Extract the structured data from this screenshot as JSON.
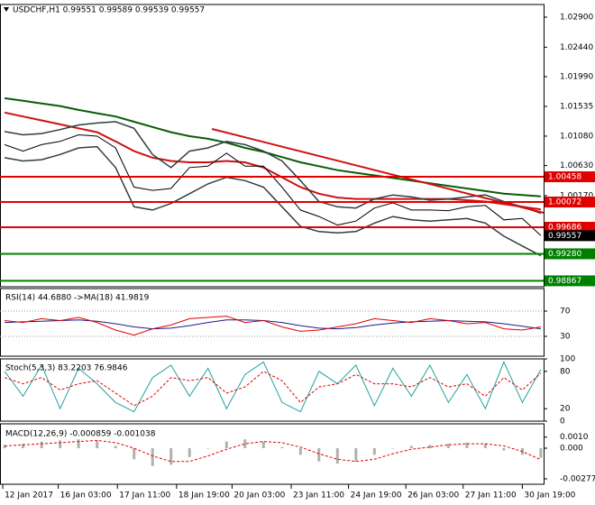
{
  "chart_data": [
    {
      "type": "line",
      "title": "USDCHF,H1  0.99551 0.99589 0.99539 0.99557",
      "ylim": [
        0.98776,
        1.03093
      ],
      "yticks": [
        {
          "value": 1.029,
          "label": "1.02900"
        },
        {
          "value": 1.0244,
          "label": "1.02440"
        },
        {
          "value": 1.0199,
          "label": "1.01990"
        },
        1.01535,
        {
          "value": 1.0108,
          "label": "1.01080"
        },
        {
          "value": 1.0063,
          "label": "1.00630"
        },
        {
          "value": 1.0017,
          "label": "1.00170"
        }
      ],
      "series": [
        {
          "color": "#0a5c0a",
          "width": 2,
          "values": [
            1.0166,
            1.0162,
            1.0158,
            1.0154,
            1.0148,
            1.0143,
            1.0138,
            1.013,
            1.0122,
            1.0114,
            1.0108,
            1.0104,
            1.0098,
            1.009,
            1.0084,
            1.0076,
            1.0068,
            1.0062,
            1.0056,
            1.0052,
            1.0048,
            1.0044,
            1.004,
            1.0036,
            1.0032,
            1.0028,
            1.0024,
            1.002,
            1.0018,
            1.0016
          ]
        },
        {
          "color": "#d01010",
          "width": 2,
          "values": [
            1.0144,
            1.0138,
            1.0132,
            1.0126,
            1.012,
            1.0114,
            1.01,
            1.0085,
            1.0075,
            1.007,
            1.0068,
            1.0068,
            1.007,
            1.0068,
            1.006,
            1.0045,
            1.003,
            1.002,
            1.0014,
            1.0012,
            1.0012,
            1.0012,
            1.0012,
            1.0012,
            1.0012,
            1.001,
            1.0008,
            1.0004,
            1.0,
            0.9996
          ]
        },
        {
          "color": "#2f3f3f",
          "width": 1.5,
          "values": [
            1.0115,
            1.011,
            1.0112,
            1.0118,
            1.0125,
            1.0128,
            1.013,
            1.012,
            1.008,
            1.006,
            1.0085,
            1.009,
            1.01,
            1.0095,
            1.0085,
            1.007,
            1.004,
            1.0008,
            1.0,
            0.9998,
            1.0012,
            1.0018,
            1.0015,
            1.001,
            1.0012,
            1.0015,
            1.0018,
            1.0008,
            1.0,
            0.999
          ]
        },
        {
          "color": "#2f3f3f",
          "width": 1.5,
          "values": [
            1.0075,
            1.007,
            1.0072,
            1.008,
            1.009,
            1.0092,
            1.006,
            1.0,
            0.9995,
            1.0005,
            1.002,
            1.0035,
            1.0045,
            1.004,
            1.003,
            1.0,
            0.997,
            0.9962,
            0.996,
            0.9962,
            0.9975,
            0.9985,
            0.998,
            0.9978,
            0.998,
            0.9982,
            0.9975,
            0.9955,
            0.994,
            0.9925
          ]
        },
        {
          "color": "#000000",
          "width": 1,
          "values": [
            1.0095,
            1.0085,
            1.0095,
            1.01,
            1.011,
            1.0108,
            1.009,
            1.003,
            1.0025,
            1.0028,
            1.006,
            1.0062,
            1.0082,
            1.0062,
            1.0062,
            1.003,
            0.9995,
            0.9985,
            0.9972,
            0.9978,
            0.9998,
            1.0006,
            0.9995,
            0.9995,
            0.9994,
            1.0,
            1.0002,
            0.998,
            0.9982,
            0.9956
          ]
        }
      ],
      "trend_line": {
        "color": "#d01010",
        "x": [
          11.21,
          29.15
        ],
        "y": [
          1.0119,
          0.99907
        ]
      },
      "levels": [
        {
          "value": 1.00458,
          "color": "#e00000"
        },
        {
          "value": 1.00072,
          "color": "#e00000"
        },
        {
          "value": 0.99686,
          "color": "#e00000"
        },
        {
          "value": 0.9928,
          "label": "0.99280",
          "color": "#008000"
        },
        {
          "value": 0.98867,
          "color": "#008000"
        }
      ],
      "current_price": 0.99557
    },
    {
      "type": "line",
      "title": "RSI(14) 44.6880 ->MA(18) 41.9819",
      "ylim": [
        -1.4,
        105.7
      ],
      "yticks": [
        70,
        30
      ],
      "series": [
        {
          "color": "#1a1a8c",
          "width": 1,
          "values": [
            52,
            53,
            54,
            55,
            56,
            54,
            50,
            45,
            42,
            43,
            47,
            52,
            56,
            56,
            55,
            52,
            47,
            43,
            42,
            44,
            48,
            51,
            53,
            54,
            55,
            54,
            53,
            50,
            46,
            42
          ]
        },
        {
          "color": "#e00000",
          "width": 1,
          "values": [
            55,
            52,
            58,
            55,
            60,
            52,
            40,
            32,
            42,
            48,
            58,
            60,
            62,
            52,
            55,
            45,
            38,
            40,
            45,
            50,
            58,
            55,
            52,
            58,
            55,
            50,
            52,
            42,
            40,
            45
          ]
        }
      ]
    },
    {
      "type": "line",
      "title": "Stoch(5,3,3) 83.2203 76.9846",
      "ylim": [
        0,
        100
      ],
      "yticks": [
        100,
        80,
        20,
        0
      ],
      "series": [
        {
          "color": "#20a0a0",
          "width": 1,
          "values": [
            80,
            40,
            90,
            20,
            85,
            60,
            30,
            15,
            70,
            90,
            40,
            85,
            20,
            75,
            95,
            30,
            15,
            80,
            60,
            90,
            25,
            85,
            40,
            90,
            30,
            75,
            20,
            95,
            30,
            83
          ]
        },
        {
          "color": "#e00000",
          "width": 1,
          "dashed": true,
          "values": [
            70,
            60,
            70,
            50,
            60,
            65,
            45,
            25,
            40,
            70,
            65,
            70,
            45,
            55,
            80,
            65,
            30,
            55,
            60,
            75,
            60,
            60,
            55,
            70,
            55,
            60,
            40,
            70,
            50,
            77
          ]
        }
      ]
    },
    {
      "type": "line",
      "title": "MACD(12,26,9) -0.000859 -0.001038",
      "ylim": [
        -0.00326,
        0.0022
      ],
      "yticks": [
        {
          "value": 0.001,
          "label": "0.0010"
        },
        {
          "value": 0,
          "label": "0.000"
        },
        -0.002771
      ],
      "xlim": [
        -0.25,
        29.15
      ],
      "xticks": [
        {
          "value": -0.1,
          "label": "12 Jan 2017"
        },
        {
          "value": 2.9,
          "label": "16 Jan 03:00"
        },
        {
          "value": 6.1,
          "label": "17 Jan 11:00"
        },
        {
          "value": 9.3,
          "label": "18 Jan 19:00"
        },
        {
          "value": 12.3,
          "label": "20 Jan 03:00"
        },
        {
          "value": 15.5,
          "label": "23 Jan 11:00"
        },
        {
          "value": 18.6,
          "label": "24 Jan 19:00"
        },
        {
          "value": 21.7,
          "label": "26 Jan 03:00"
        },
        {
          "value": 24.8,
          "label": "27 Jan 11:00"
        },
        {
          "value": 28.0,
          "label": "30 Jan 19:00"
        }
      ],
      "series": [
        {
          "type": "bar",
          "color": "#b0b0b0",
          "values": [
            0.0003,
            0.0004,
            0.0006,
            0.0007,
            0.0008,
            0.0007,
            0.0002,
            -0.001,
            -0.0016,
            -0.0015,
            -0.0008,
            0.0,
            0.0006,
            0.0008,
            0.0006,
            0.0001,
            -0.0006,
            -0.0012,
            -0.0014,
            -0.0012,
            -0.0006,
            0.0,
            0.0002,
            0.0003,
            0.0004,
            0.0005,
            0.0004,
            -0.0002,
            -0.0006,
            -0.000859
          ]
        },
        {
          "color": "#e00000",
          "width": 1,
          "dashed": true,
          "values": [
            0.0002,
            0.0003,
            0.0004,
            0.0005,
            0.0006,
            0.0007,
            0.0005,
            0.0,
            -0.0007,
            -0.0012,
            -0.0012,
            -0.0007,
            -0.0001,
            0.0004,
            0.0006,
            0.0005,
            0.0001,
            -0.0005,
            -0.001,
            -0.0012,
            -0.001,
            -0.0005,
            -0.0001,
            0.0001,
            0.0003,
            0.0004,
            0.0004,
            0.0002,
            -0.0003,
            -0.001038
          ]
        }
      ]
    }
  ]
}
